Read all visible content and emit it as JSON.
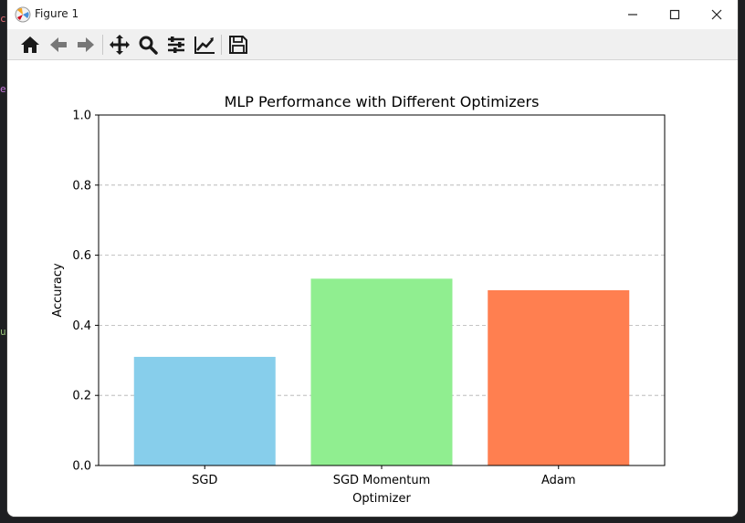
{
  "window": {
    "title": "Figure 1"
  },
  "toolbar": {
    "buttons": [
      "home-icon",
      "back-arrow-icon",
      "forward-arrow-icon",
      "pan-move-icon",
      "zoom-magnifier-icon",
      "configure-subplots-icon",
      "edit-axis-icon",
      "save-figure-icon"
    ]
  },
  "background_code": {
    "c1": "c",
    "c2": "e",
    "c3": "u"
  },
  "chart_data": {
    "type": "bar",
    "title": "MLP Performance with Different Optimizers",
    "xlabel": "Optimizer",
    "ylabel": "Accuracy",
    "categories": [
      "SGD",
      "SGD Momentum",
      "Adam"
    ],
    "values": [
      0.31,
      0.533,
      0.5
    ],
    "colors": [
      "#87ceeb",
      "#90ee90",
      "#ff7f50"
    ],
    "ylim": [
      0,
      1.0
    ],
    "yticks": [
      "0.0",
      "0.2",
      "0.4",
      "0.6",
      "0.8",
      "1.0"
    ],
    "grid": "y-dashed"
  }
}
